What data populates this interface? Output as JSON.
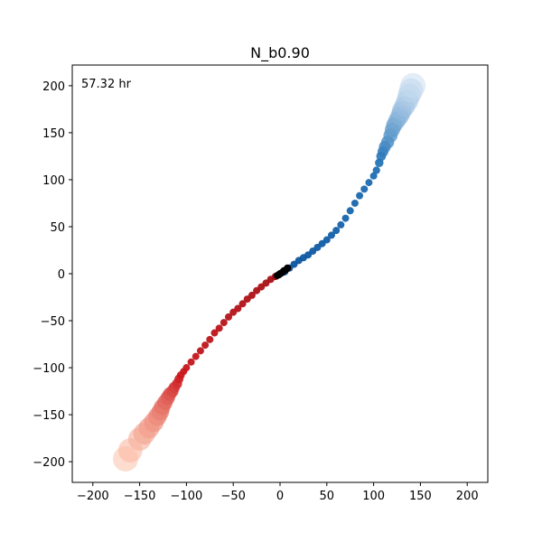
{
  "chart_data": {
    "type": "scatter",
    "title": "N_b0.90",
    "annotation": "57.32 hr",
    "xlabel": "",
    "ylabel": "",
    "xlim": [
      -222,
      222
    ],
    "ylim": [
      -222,
      222
    ],
    "xticks": [
      -200,
      -150,
      -100,
      -50,
      0,
      50,
      100,
      150,
      200
    ],
    "yticks": [
      -200,
      -150,
      -100,
      -50,
      0,
      50,
      100,
      150,
      200
    ],
    "grid": false,
    "colors": {
      "blue_dark": "#08519c",
      "blue_mid": "#2171b5",
      "blue_light": "#c6dbef",
      "red_dark": "#a50f15",
      "red_mid": "#cb181d",
      "red_light": "#fcbba1",
      "core": "#000000"
    },
    "series": [
      {
        "color_ramp": "blues",
        "x": [
          5,
          10,
          15,
          20,
          25,
          30,
          35,
          40,
          45,
          50,
          55,
          60,
          65,
          70,
          75,
          80,
          85,
          90,
          95,
          100,
          103,
          106,
          108,
          110,
          112,
          115,
          118,
          120,
          122,
          125,
          128,
          130,
          133,
          136,
          138,
          140,
          142
        ],
        "y": [
          2,
          6,
          10,
          14,
          17,
          20,
          24,
          28,
          32,
          36,
          41,
          46,
          52,
          59,
          67,
          75,
          83,
          90,
          97,
          104,
          110,
          118,
          125,
          130,
          135,
          140,
          147,
          153,
          158,
          163,
          168,
          173,
          178,
          184,
          190,
          195,
          200
        ]
      },
      {
        "color_ramp": "reds",
        "x": [
          -5,
          -10,
          -15,
          -20,
          -25,
          -30,
          -35,
          -40,
          -45,
          -50,
          -55,
          -60,
          -65,
          -70,
          -75,
          -80,
          -85,
          -90,
          -95,
          -100,
          -103,
          -106,
          -108,
          -110,
          -113,
          -115,
          -118,
          -120,
          -123,
          -126,
          -128,
          -131,
          -135,
          -140,
          -145,
          -150,
          -160,
          -165
        ],
        "y": [
          -3,
          -6,
          -10,
          -14,
          -18,
          -23,
          -27,
          -32,
          -37,
          -41,
          -46,
          -52,
          -58,
          -63,
          -70,
          -76,
          -82,
          -88,
          -94,
          -100,
          -104,
          -108,
          -112,
          -117,
          -121,
          -125,
          -128,
          -132,
          -137,
          -142,
          -147,
          -152,
          -158,
          -164,
          -170,
          -176,
          -188,
          -197
        ]
      },
      {
        "color_ramp": "core",
        "x": [
          -3,
          -1,
          0,
          2,
          4,
          6,
          8
        ],
        "y": [
          -2,
          -1,
          0,
          1,
          3,
          4,
          6
        ]
      }
    ]
  }
}
